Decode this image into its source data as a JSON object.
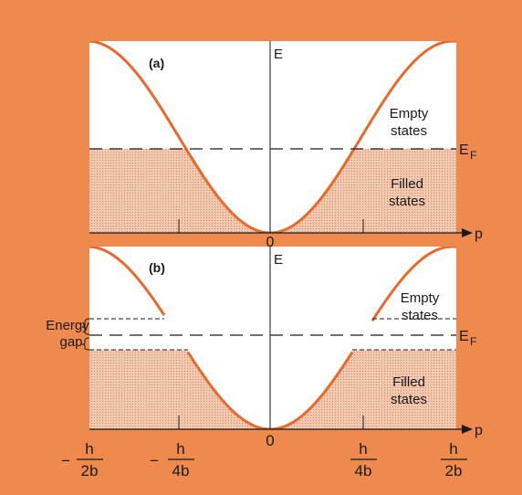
{
  "colors": {
    "background": "#ee8a4e",
    "panel": "#ffffff",
    "curve": "#e8692a",
    "filled": "#f3c9b0",
    "ink": "#1a1a1a"
  },
  "panel_a": {
    "label": "(a)",
    "e_label": "E",
    "fermi_label": "E",
    "fermi_sub": "F",
    "p_label": "p",
    "origin": "0",
    "empty_line1": "Empty",
    "empty_line2": "states",
    "filled_line1": "Filled",
    "filled_line2": "states"
  },
  "panel_b": {
    "label": "(b)",
    "e_label": "E",
    "fermi_label": "E",
    "fermi_sub": "F",
    "p_label": "p",
    "empty_line1": "Empty",
    "empty_line2": "states",
    "filled_line1": "Filled",
    "filled_line2": "states",
    "gap_line1": "Energy",
    "gap_line2": "gap"
  },
  "ticks": {
    "numerator": "h",
    "neg_sign": "−",
    "zero": "0",
    "den_half": "2b",
    "den_quarter": "4b"
  }
}
